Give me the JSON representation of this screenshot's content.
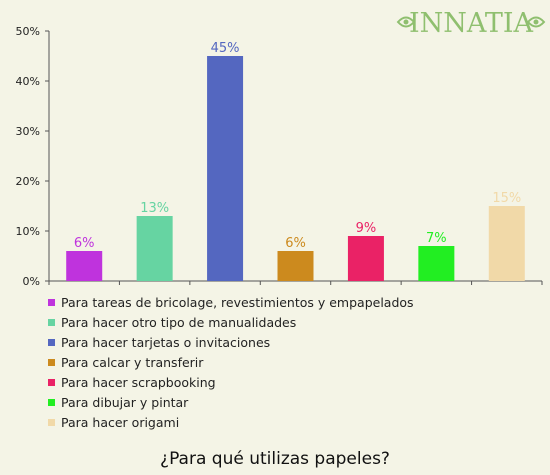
{
  "logo": {
    "text": "INNATIA",
    "color": "#8fbf6f"
  },
  "chart_data": {
    "type": "bar",
    "title": "¿Para qué utilizas papeles?",
    "xlabel": "",
    "ylabel": "",
    "ylim": [
      0,
      50
    ],
    "yticks": [
      "0%",
      "10%",
      "20%",
      "30%",
      "40%",
      "50%"
    ],
    "grid": false,
    "legend_placement": "bottom",
    "categories": [
      "Para tareas de bricolage, revestimientos y empapelados",
      "Para hacer otro tipo de manualidades",
      "Para hacer tarjetas o invitaciones",
      "Para calcar y transferir",
      "Para hacer scrapbooking",
      "Para dibujar y pintar",
      "Para hacer origami"
    ],
    "values": [
      6,
      13,
      45,
      6,
      9,
      7,
      15
    ],
    "value_labels": [
      "6%",
      "13%",
      "45%",
      "6%",
      "9%",
      "7%",
      "15%"
    ],
    "colors": [
      "#bf33dd",
      "#66d4a2",
      "#5467c0",
      "#cc8a1e",
      "#ea2266",
      "#22ee22",
      "#f1d9a8"
    ]
  }
}
